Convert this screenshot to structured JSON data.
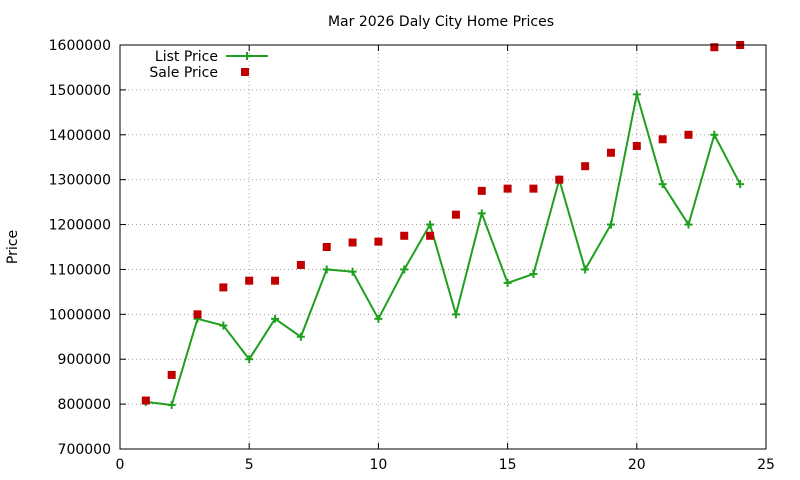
{
  "chart_data": {
    "type": "line",
    "title": "Mar 2026 Daly City Home Prices",
    "xlabel": "",
    "ylabel": "Price",
    "xlim": [
      0,
      25
    ],
    "ylim": [
      700000,
      1600000
    ],
    "x_ticks": [
      "0",
      "5",
      "10",
      "15",
      "20",
      "25"
    ],
    "y_ticks": [
      "700000",
      "800000",
      "900000",
      "1000000",
      "1100000",
      "1200000",
      "1300000",
      "1400000",
      "1500000",
      "1600000"
    ],
    "grid": true,
    "legend_position": "top-left",
    "x": [
      1,
      2,
      3,
      4,
      5,
      6,
      7,
      8,
      9,
      10,
      11,
      12,
      13,
      14,
      15,
      16,
      17,
      18,
      19,
      20,
      21,
      22,
      23,
      24
    ],
    "series": [
      {
        "name": "List Price",
        "style": "line+cross",
        "color": "#1ea01e",
        "values": [
          805000,
          798000,
          990000,
          975000,
          900000,
          990000,
          950000,
          1100000,
          1095000,
          990000,
          1100000,
          1200000,
          1000000,
          1225000,
          1070000,
          1090000,
          1300000,
          1100000,
          1200000,
          1490000,
          1290000,
          1200000,
          1400000,
          1290000
        ]
      },
      {
        "name": "Sale Price",
        "style": "square-markers",
        "color": "#c00000",
        "values": [
          808000,
          865000,
          1000000,
          1060000,
          1075000,
          1075000,
          1110000,
          1150000,
          1160000,
          1162000,
          1175000,
          1175000,
          1222000,
          1275000,
          1280000,
          1280000,
          1300000,
          1330000,
          1360000,
          1375000,
          1390000,
          1400000,
          1595000,
          1600000
        ]
      }
    ]
  }
}
